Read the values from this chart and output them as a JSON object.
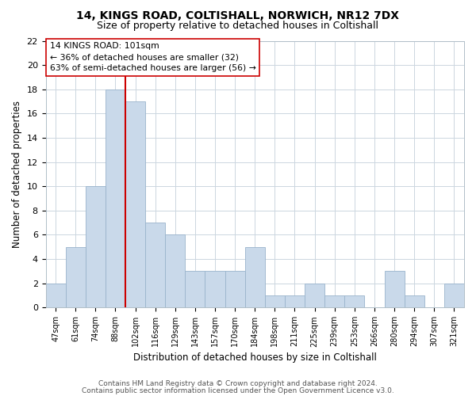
{
  "title1": "14, KINGS ROAD, COLTISHALL, NORWICH, NR12 7DX",
  "title2": "Size of property relative to detached houses in Coltishall",
  "xlabel": "Distribution of detached houses by size in Coltishall",
  "ylabel": "Number of detached properties",
  "bin_labels": [
    "47sqm",
    "61sqm",
    "74sqm",
    "88sqm",
    "102sqm",
    "116sqm",
    "129sqm",
    "143sqm",
    "157sqm",
    "170sqm",
    "184sqm",
    "198sqm",
    "211sqm",
    "225sqm",
    "239sqm",
    "253sqm",
    "266sqm",
    "280sqm",
    "294sqm",
    "307sqm",
    "321sqm"
  ],
  "bar_heights": [
    2,
    5,
    10,
    18,
    17,
    7,
    6,
    3,
    3,
    3,
    5,
    1,
    1,
    2,
    1,
    1,
    0,
    3,
    1,
    0,
    2
  ],
  "bar_color": "#c9d9ea",
  "bar_edge_color": "#9ab4cc",
  "red_line_x": 3.5,
  "highlight_line_color": "#cc0000",
  "annotation_title": "14 KINGS ROAD: 101sqm",
  "annotation_line1": "← 36% of detached houses are smaller (32)",
  "annotation_line2": "63% of semi-detached houses are larger (56) →",
  "annotation_box_color": "#ffffff",
  "annotation_box_edge_color": "#cc0000",
  "ylim": [
    0,
    22
  ],
  "yticks": [
    0,
    2,
    4,
    6,
    8,
    10,
    12,
    14,
    16,
    18,
    20,
    22
  ],
  "footer1": "Contains HM Land Registry data © Crown copyright and database right 2024.",
  "footer2": "Contains public sector information licensed under the Open Government Licence v3.0.",
  "background_color": "#ffffff",
  "grid_color": "#ccd6e0"
}
